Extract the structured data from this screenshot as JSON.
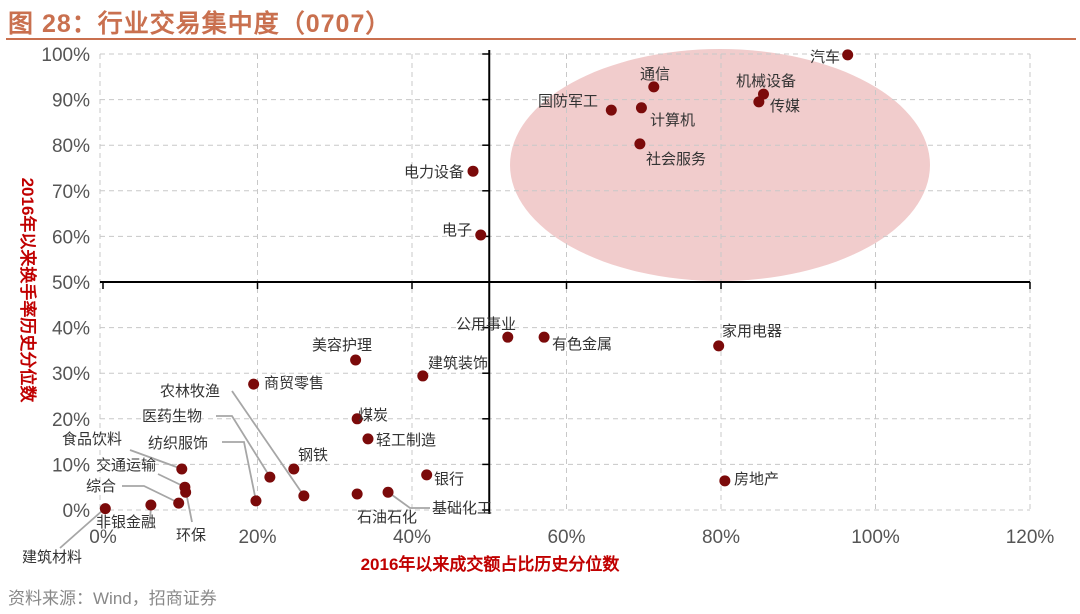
{
  "title": "图 28：行业交易集中度（0707）",
  "source": "资料来源：Wind，招商证券",
  "colors": {
    "point": "#7b0a0a",
    "highlight": "#f0c6c6",
    "title": "#c9704f",
    "axis_label": "#c00000"
  },
  "chart_data": {
    "type": "scatter",
    "title": "行业交易集中度（0707）",
    "xlabel": "2016年以来成交额占比历史分位数",
    "ylabel": "2016年以来换手率历史分位数",
    "xlim": [
      0,
      120
    ],
    "ylim": [
      0,
      100
    ],
    "x_ticks": [
      "0%",
      "20%",
      "40%",
      "60%",
      "80%",
      "100%",
      "120%"
    ],
    "y_ticks": [
      "0%",
      "10%",
      "20%",
      "30%",
      "40%",
      "50%",
      "60%",
      "70%",
      "80%",
      "90%",
      "100%"
    ],
    "grid": true,
    "quadrant_lines": {
      "x": 50,
      "y": 50
    },
    "highlight_region": "upper-right quadrant ellipse",
    "points": [
      {
        "name": "汽车",
        "x": 96.4,
        "y": 99.8
      },
      {
        "name": "通信",
        "x": 71.3,
        "y": 92.8
      },
      {
        "name": "机械设备",
        "x": 85.5,
        "y": 91.2
      },
      {
        "name": "传媒",
        "x": 84.9,
        "y": 89.5
      },
      {
        "name": "国防军工",
        "x": 65.8,
        "y": 87.7
      },
      {
        "name": "计算机",
        "x": 69.7,
        "y": 88.2
      },
      {
        "name": "社会服务",
        "x": 69.5,
        "y": 80.3
      },
      {
        "name": "电力设备",
        "x": 47.9,
        "y": 74.3
      },
      {
        "name": "电子",
        "x": 48.9,
        "y": 60.3
      },
      {
        "name": "公用事业",
        "x": 52.4,
        "y": 37.9
      },
      {
        "name": "有色金属",
        "x": 57.1,
        "y": 37.9
      },
      {
        "name": "家用电器",
        "x": 79.7,
        "y": 36.0
      },
      {
        "name": "美容护理",
        "x": 32.7,
        "y": 32.9
      },
      {
        "name": "建筑装饰",
        "x": 41.4,
        "y": 29.4
      },
      {
        "name": "商贸零售",
        "x": 19.5,
        "y": 27.6
      },
      {
        "name": "煤炭",
        "x": 32.9,
        "y": 20.0
      },
      {
        "name": "轻工制造",
        "x": 34.3,
        "y": 15.6
      },
      {
        "name": "钢铁",
        "x": 24.7,
        "y": 9.0
      },
      {
        "name": "医药生物",
        "x": 21.6,
        "y": 7.2
      },
      {
        "name": "银行",
        "x": 41.9,
        "y": 7.7
      },
      {
        "name": "食品饮料",
        "x": 10.2,
        "y": 9.0
      },
      {
        "name": "交通运输",
        "x": 10.6,
        "y": 5.0
      },
      {
        "name": "环保",
        "x": 10.7,
        "y": 3.9
      },
      {
        "name": "综合",
        "x": 9.8,
        "y": 1.5
      },
      {
        "name": "非银金融",
        "x": 6.2,
        "y": 1.1
      },
      {
        "name": "纺织服饰",
        "x": 19.8,
        "y": 2.0
      },
      {
        "name": "农林牧渔",
        "x": 26.0,
        "y": 3.1
      },
      {
        "name": "石油石化",
        "x": 32.9,
        "y": 3.5
      },
      {
        "name": "基础化工",
        "x": 36.9,
        "y": 3.9
      },
      {
        "name": "房地产",
        "x": 80.5,
        "y": 6.4
      },
      {
        "name": "建筑材料",
        "x": 0.3,
        "y": 0.3
      }
    ]
  }
}
